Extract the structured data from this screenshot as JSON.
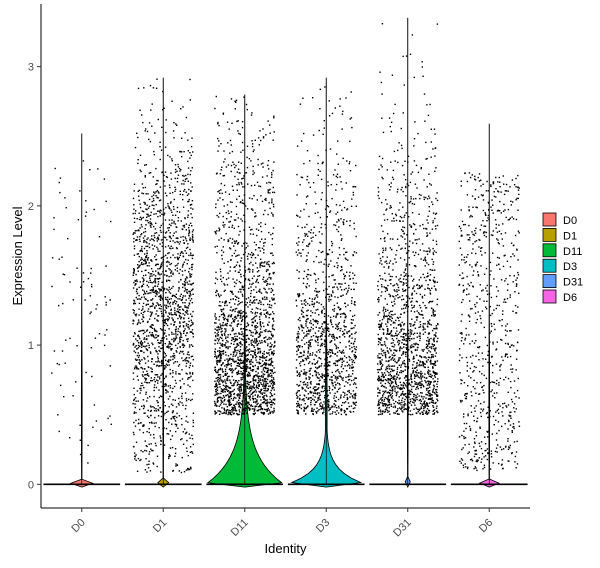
{
  "chart_data": {
    "type": "violin",
    "title": "",
    "xlabel": "Identity",
    "ylabel": "Expression Level",
    "categories": [
      "D0",
      "D1",
      "D11",
      "D3",
      "D31",
      "D6"
    ],
    "y_ticks": [
      0,
      1,
      2,
      3
    ],
    "ylim": [
      -0.17,
      3.45
    ],
    "grid": false,
    "legend_placement": "right",
    "series": [
      {
        "category": "D0",
        "max": 2.52,
        "fill": "#F8766D",
        "nonzero_points": 90,
        "density_peak_at_zero": "very narrow"
      },
      {
        "category": "D1",
        "max": 2.92,
        "fill": "#B79F00",
        "nonzero_points": 1700,
        "density_peak_at_zero": "very narrow"
      },
      {
        "category": "D11",
        "max": 2.8,
        "fill": "#00BA38",
        "nonzero_points": 1900,
        "density_peak_at_zero": "wide"
      },
      {
        "category": "D3",
        "max": 2.92,
        "fill": "#00BFC4",
        "nonzero_points": 1200,
        "density_peak_at_zero": "medium"
      },
      {
        "category": "D31",
        "max": 3.35,
        "fill": "#619CFF",
        "nonzero_points": 1550,
        "density_peak_at_zero": "very narrow"
      },
      {
        "category": "D6",
        "max": 2.59,
        "fill": "#F564E3",
        "nonzero_points": 700,
        "density_peak_at_zero": "very narrow"
      }
    ],
    "legend": [
      {
        "label": "D0",
        "color": "#F8766D"
      },
      {
        "label": "D1",
        "color": "#B79F00"
      },
      {
        "label": "D11",
        "color": "#00BA38"
      },
      {
        "label": "D3",
        "color": "#00BFC4"
      },
      {
        "label": "D31",
        "color": "#619CFF"
      },
      {
        "label": "D6",
        "color": "#F564E3"
      }
    ]
  }
}
